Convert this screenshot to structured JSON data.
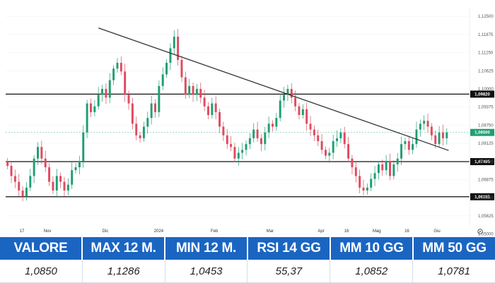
{
  "chart_data": {
    "type": "candlestick",
    "ylim": [
      1.0538,
      1.1282
    ],
    "y_ticks": [
      "1,12500",
      "1,11875",
      "1,11250",
      "1,10625",
      "1,10000",
      "1,09375",
      "1,08750",
      "1,08125",
      "1,07500",
      "1,06875",
      "1,06250",
      "1,05625",
      "1,05000"
    ],
    "x_ticks": [
      "17",
      "Nov",
      "Dic",
      "2024",
      "Feb",
      "Mar",
      "Apr",
      "16",
      "Mag",
      "16",
      "Giu"
    ],
    "levels": [
      {
        "label": "1,09820",
        "value": 1.0982
      },
      {
        "label": "1,07495",
        "value": 1.07495
      },
      {
        "label": "1,06285",
        "value": 1.06285
      }
    ],
    "current": {
      "label": "1,08500",
      "value": 1.085
    },
    "trendline": [
      {
        "x": 0.2,
        "y": 1.121
      },
      {
        "x": 0.955,
        "y": 1.0788
      }
    ],
    "colors": {
      "up": "#1f9e72",
      "down": "#e04a5f",
      "axis_label_bg": "#111111",
      "current_bg": "#1f9e72"
    },
    "series": [
      {
        "values": [
          1.0735,
          1.07,
          1.068,
          1.065,
          1.063,
          1.066,
          1.07,
          1.076,
          1.08,
          1.076,
          1.073,
          1.068,
          1.065,
          1.07,
          1.068,
          1.065,
          1.067,
          1.072,
          1.073,
          1.075,
          1.085,
          1.095,
          1.092,
          1.094,
          1.098,
          1.1,
          1.097,
          1.103,
          1.107,
          1.109,
          1.106,
          1.098,
          1.095,
          1.088,
          1.084,
          1.083,
          1.087,
          1.09,
          1.095,
          1.092,
          1.101,
          1.105,
          1.109,
          1.114,
          1.118,
          1.11,
          1.104,
          1.098,
          1.101,
          1.098,
          1.1,
          1.097,
          1.094,
          1.091,
          1.095,
          1.092,
          1.087,
          1.084,
          1.081,
          1.08,
          1.076,
          1.078,
          1.079,
          1.081,
          1.083,
          1.086,
          1.083,
          1.081,
          1.085,
          1.088,
          1.087,
          1.09,
          1.096,
          1.098,
          1.1,
          1.097,
          1.094,
          1.091,
          1.093,
          1.088,
          1.086,
          1.084,
          1.082,
          1.079,
          1.077,
          1.078,
          1.082,
          1.083,
          1.085,
          1.081,
          1.076,
          1.073,
          1.07,
          1.066,
          1.065,
          1.066,
          1.069,
          1.071,
          1.074,
          1.072,
          1.075,
          1.07,
          1.074,
          1.076,
          1.081,
          1.082,
          1.079,
          1.081,
          1.086,
          1.088,
          1.089,
          1.087,
          1.084,
          1.081,
          1.085,
          1.083,
          1.085
        ]
      }
    ]
  },
  "stats": {
    "headers": [
      "VALORE",
      "MAX 12 M.",
      "MIN 12 M.",
      "RSI 14 GG",
      "MM 10 GG",
      "MM 50 GG"
    ],
    "values": [
      "1,0850",
      "1,1286",
      "1,0453",
      "55,37",
      "1,0852",
      "1,0781"
    ]
  }
}
